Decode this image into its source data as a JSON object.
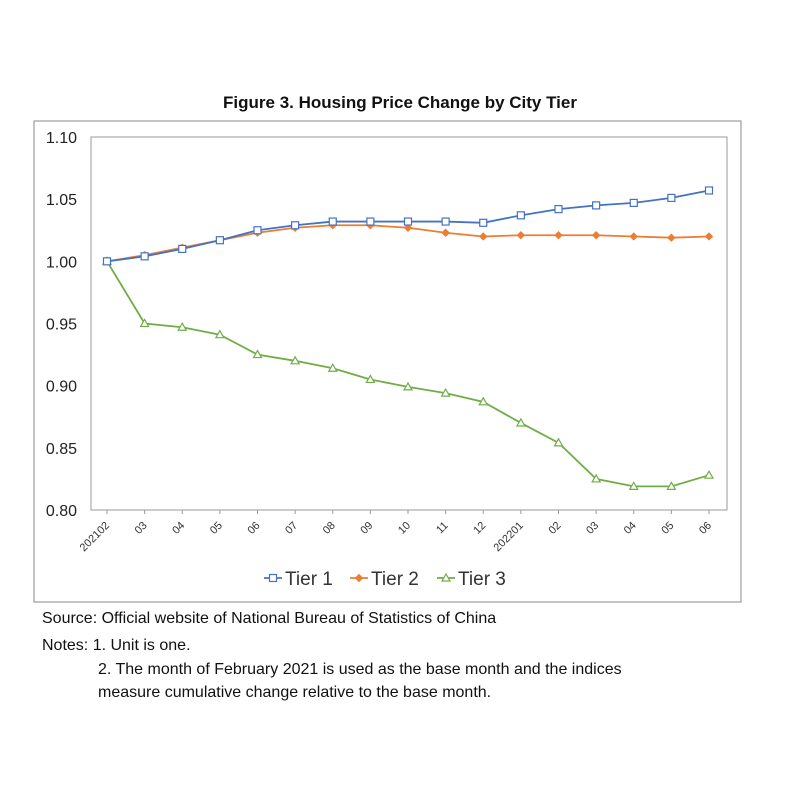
{
  "chart_data": {
    "type": "line",
    "title": "Figure 3. Housing Price Change by City Tier",
    "xlabel": "",
    "ylabel": "",
    "categories": [
      "202102",
      "03",
      "04",
      "05",
      "06",
      "07",
      "08",
      "09",
      "10",
      "11",
      "12",
      "202201",
      "02",
      "03",
      "04",
      "05",
      "06"
    ],
    "ylim": [
      0.8,
      1.1
    ],
    "yticks": [
      "0.80",
      "0.85",
      "0.90",
      "0.95",
      "1.00",
      "1.05",
      "1.10"
    ],
    "grid": false,
    "legend_position": "bottom",
    "series": [
      {
        "name": "Tier 1",
        "color": "#4472C4",
        "marker": "square",
        "values": [
          1.0,
          1.004,
          1.01,
          1.017,
          1.025,
          1.029,
          1.032,
          1.032,
          1.032,
          1.032,
          1.031,
          1.037,
          1.042,
          1.045,
          1.047,
          1.051,
          1.057
        ]
      },
      {
        "name": "Tier 2",
        "color": "#ED7D31",
        "marker": "diamond",
        "values": [
          1.0,
          1.005,
          1.011,
          1.017,
          1.023,
          1.027,
          1.029,
          1.029,
          1.027,
          1.023,
          1.02,
          1.021,
          1.021,
          1.021,
          1.02,
          1.019,
          1.02
        ]
      },
      {
        "name": "Tier 3",
        "color": "#70AD47",
        "marker": "triangle",
        "values": [
          1.0,
          0.95,
          0.947,
          0.941,
          0.925,
          0.92,
          0.914,
          0.905,
          0.899,
          0.894,
          0.887,
          0.87,
          0.854,
          0.825,
          0.819,
          0.819,
          0.828
        ]
      }
    ]
  },
  "notes": {
    "source": "Source: Official website of National Bureau of Statistics of China",
    "note1": "Notes: 1. Unit is one.",
    "note2_line1": "2. The month of February 2021 is used as the base month and the indices",
    "note2_line2": "measure cumulative change relative to the base month."
  }
}
